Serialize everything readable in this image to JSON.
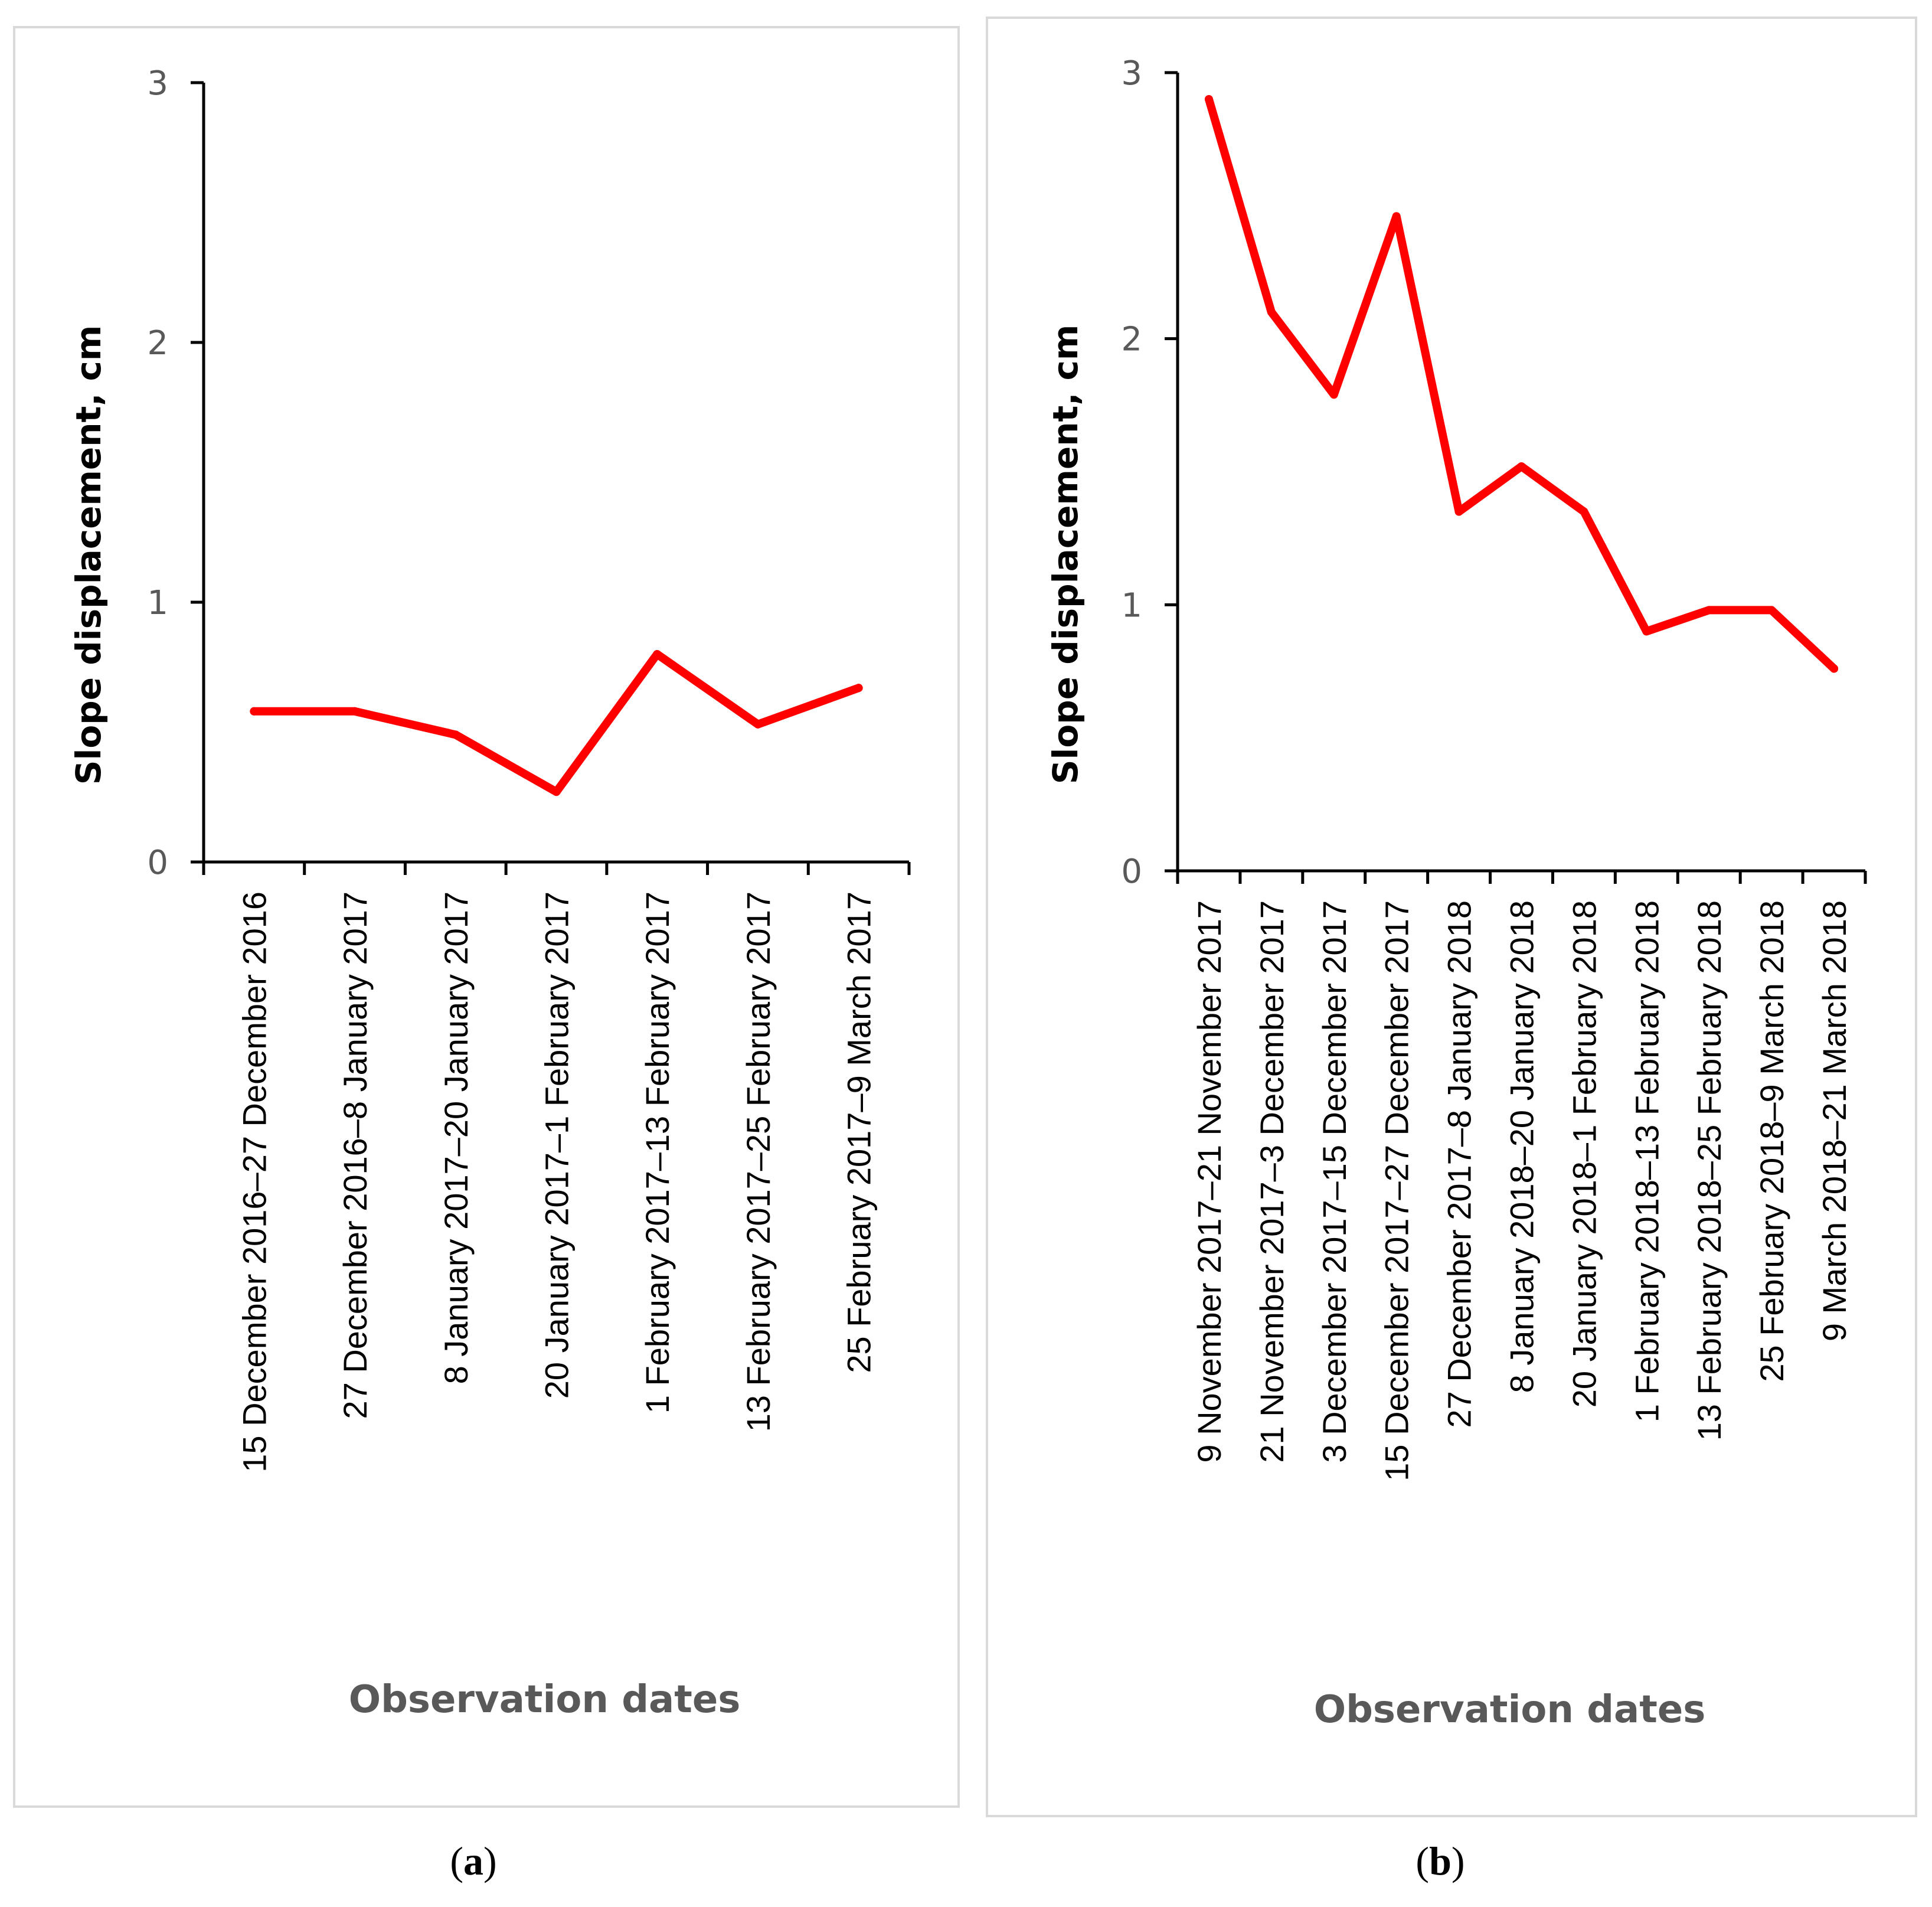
{
  "colors": {
    "line": "#ff0000"
  },
  "chart_data": [
    {
      "type": "line",
      "caption_letter": "a",
      "categories": [
        "15 December 2016–27 December 2016",
        "27 December 2016–8 January 2017",
        "8 January 2017–20 January 2017",
        "20 January 2017–1 February 2017",
        "1 February 2017–13 February 2017",
        "13 February 2017–25 February 2017",
        "25 February 2017–9 March 2017"
      ],
      "values": [
        0.58,
        0.58,
        0.49,
        0.27,
        0.8,
        0.53,
        0.67
      ],
      "xlabel": "Observation dates",
      "ylabel": "Slope displacement, cm",
      "ylim": [
        0,
        3
      ],
      "yticks": [
        "0",
        "1",
        "2",
        "3"
      ],
      "grid": false
    },
    {
      "type": "line",
      "caption_letter": "b",
      "categories": [
        "9 November 2017–21 November 2017",
        "21 November 2017–3 December 2017",
        "3 December 2017–15 December 2017",
        "15 December 2017–27 December 2017",
        "27 December 2017–8 January 2018",
        "8 January 2018–20 January 2018",
        "20 January 2018–1 February 2018",
        "1 February 2018–13 February 2018",
        "13 February 2018–25 February 2018",
        "25 February 2018–9 March 2018",
        "9 March 2018–21 March 2018"
      ],
      "values": [
        2.9,
        2.1,
        1.79,
        2.46,
        1.35,
        1.52,
        1.35,
        0.9,
        0.98,
        0.98,
        0.76
      ],
      "xlabel": "Observation dates",
      "ylabel": "Slope displacement, cm",
      "ylim": [
        0,
        3
      ],
      "yticks": [
        "0",
        "1",
        "2",
        "3"
      ],
      "grid": false
    }
  ]
}
